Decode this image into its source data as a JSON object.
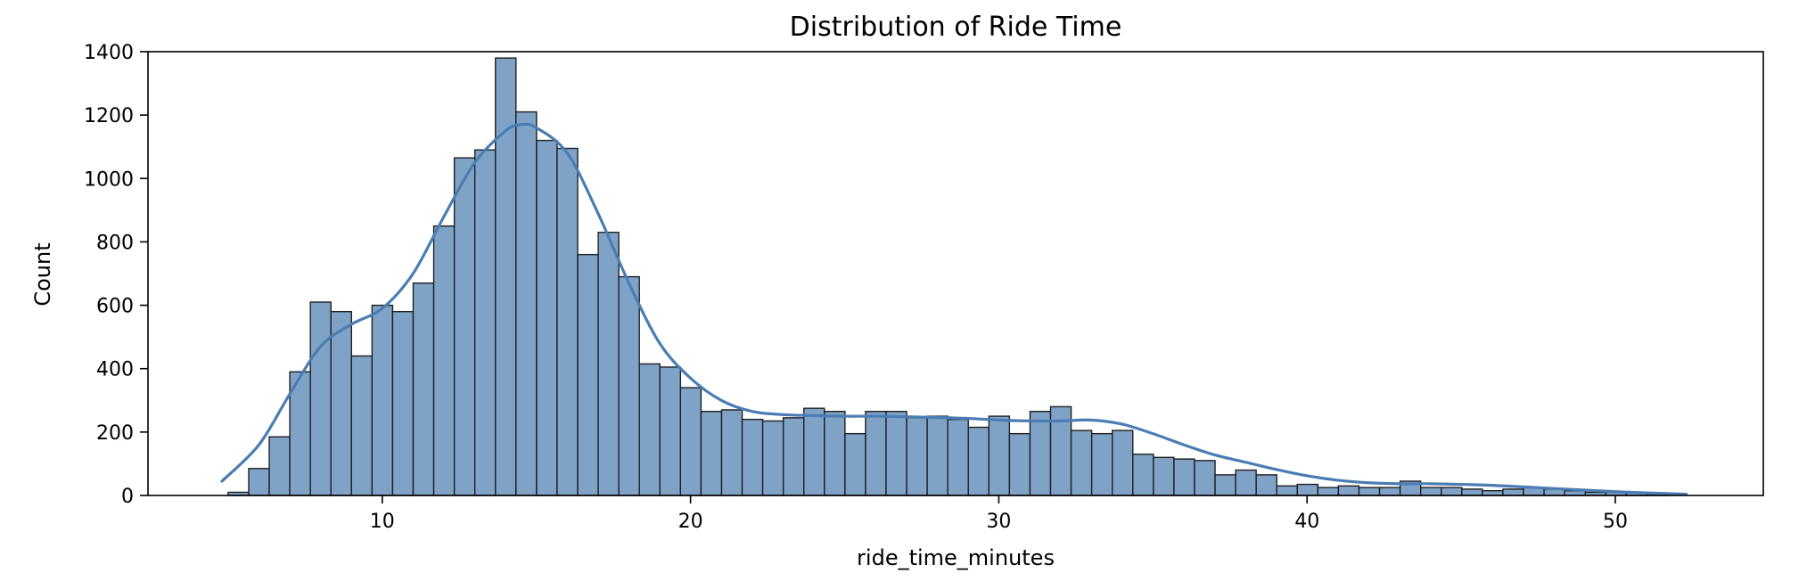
{
  "chart_data": {
    "type": "histogram",
    "title": "Distribution of Ride Time",
    "xlabel": "ride_time_minutes",
    "ylabel": "Count",
    "xlim": [
      2.4,
      54.8
    ],
    "ylim": [
      0,
      1400
    ],
    "xticks": [
      10,
      20,
      30,
      40,
      50
    ],
    "yticks": [
      0,
      200,
      400,
      600,
      800,
      1000,
      1200,
      1400
    ],
    "bin_start": 5.0,
    "bin_width": 0.667,
    "bar_color": "#7fa3c7",
    "edge_color": "#1f1f1f",
    "kde_color": "#4a7db3",
    "grid": false,
    "legend": "none",
    "counts": [
      10,
      85,
      185,
      390,
      610,
      580,
      440,
      600,
      580,
      670,
      850,
      1065,
      1090,
      1380,
      1210,
      1120,
      1095,
      760,
      830,
      690,
      415,
      405,
      340,
      265,
      270,
      240,
      235,
      245,
      275,
      265,
      195,
      265,
      265,
      245,
      250,
      240,
      215,
      250,
      195,
      265,
      280,
      205,
      195,
      205,
      130,
      120,
      115,
      110,
      65,
      80,
      65,
      30,
      35,
      25,
      30,
      25,
      25,
      45,
      25,
      25,
      20,
      15,
      20,
      25,
      20,
      15,
      10,
      10,
      10,
      5
    ],
    "kde": {
      "x": [
        4.8,
        6,
        7,
        8,
        9,
        10,
        11,
        12,
        13,
        14,
        14.5,
        15,
        16,
        17,
        18,
        19,
        20,
        21,
        22,
        23,
        24,
        25,
        26,
        27,
        28,
        29,
        30,
        31,
        32,
        33,
        34,
        35,
        36,
        37,
        38,
        39,
        40,
        41,
        42,
        43,
        44,
        45,
        46,
        47,
        48,
        49,
        50,
        51,
        52.3
      ],
      "y": [
        45,
        160,
        320,
        470,
        540,
        590,
        700,
        880,
        1050,
        1150,
        1170,
        1160,
        1080,
        890,
        670,
        480,
        370,
        300,
        265,
        255,
        252,
        250,
        250,
        248,
        246,
        243,
        238,
        235,
        235,
        238,
        225,
        195,
        160,
        128,
        105,
        82,
        62,
        48,
        40,
        37,
        37,
        35,
        32,
        27,
        22,
        17,
        12,
        8,
        4
      ]
    }
  }
}
